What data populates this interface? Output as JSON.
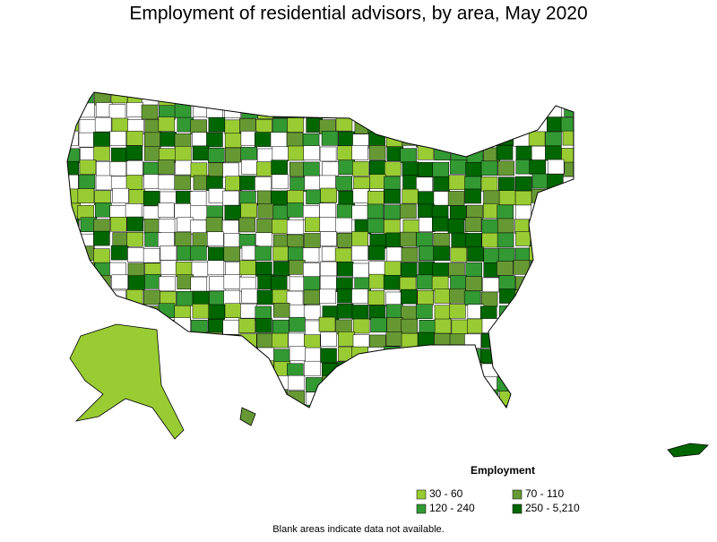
{
  "title": "Employment of residential advisors, by area, May 2020",
  "legend": {
    "title": "Employment",
    "items": [
      {
        "label": "30 - 60",
        "color": "#99cc33"
      },
      {
        "label": "70 - 110",
        "color": "#669933"
      },
      {
        "label": "120 - 240",
        "color": "#339933"
      },
      {
        "label": "250 - 5,210",
        "color": "#006600"
      }
    ]
  },
  "note": "Blank areas indicate data not available."
}
